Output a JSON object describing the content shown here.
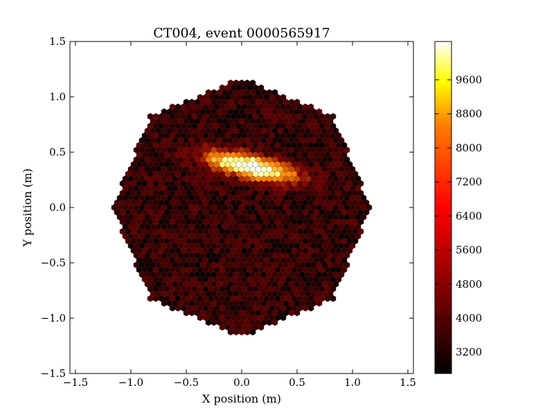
{
  "chart_data": {
    "type": "heatmap",
    "title": "CT004, event 0000565917",
    "xlabel": "X position (m)",
    "ylabel": "Y position (m)",
    "xlim": [
      -1.55,
      1.55
    ],
    "ylim": [
      -1.5,
      1.5
    ],
    "x_ticks": [
      -1.5,
      -1.0,
      -0.5,
      0.0,
      0.5,
      1.0,
      1.5
    ],
    "x_tick_labels": [
      "−1.5",
      "−1.0",
      "−0.5",
      "0.0",
      "0.5",
      "1.0",
      "1.5"
    ],
    "y_ticks": [
      -1.5,
      -1.0,
      -0.5,
      0.0,
      0.5,
      1.0,
      1.5
    ],
    "y_tick_labels": [
      "−1.5",
      "−1.0",
      "−0.5",
      "0.0",
      "0.5",
      "1.0",
      "1.5"
    ],
    "camera": {
      "pixel_shape": "hexagon",
      "outline": "octagon",
      "outline_radius_m": 1.17,
      "pixel_pitch_m": 0.05
    },
    "image_parameters": {
      "background_level": 3500,
      "peak_level": 10400,
      "hillas_centroid_m": [
        0.08,
        0.37
      ],
      "hillas_length_m": 0.55,
      "hillas_width_m": 0.07,
      "hillas_psi_deg": -13
    },
    "colorbar": {
      "colormap": "afmhot",
      "min": 2700,
      "max": 10500,
      "ticks": [
        3200,
        4000,
        4800,
        5600,
        6400,
        7200,
        8000,
        8800,
        9600
      ],
      "tick_labels": [
        "3200",
        "4000",
        "4800",
        "5600",
        "6400",
        "7200",
        "8000",
        "8800",
        "9600"
      ]
    },
    "grid": false,
    "legend": "none"
  },
  "colors": {
    "axes": "#000000",
    "pixel_edge": "#555555",
    "background": "#ffffff"
  }
}
